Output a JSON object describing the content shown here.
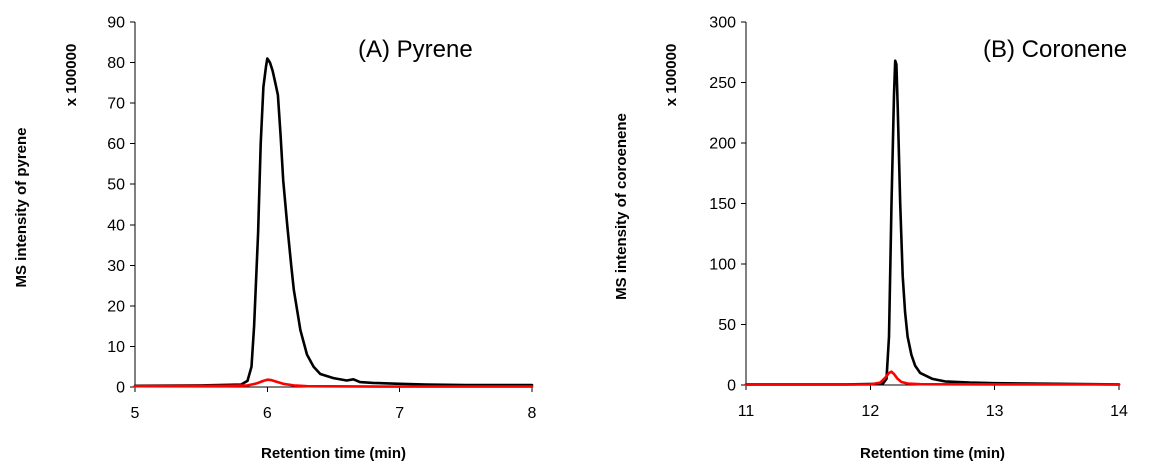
{
  "chart_data": [
    {
      "type": "line",
      "title": "(A) Pyrene",
      "xlabel": "Retention time (min)",
      "ylabel": "MS intensity of pyrene",
      "y_multiplier_label": "x 100000",
      "xlim": [
        5,
        8
      ],
      "ylim": [
        0,
        90
      ],
      "xticks": [
        "5",
        "6",
        "7",
        "8"
      ],
      "yticks": [
        "0",
        "10",
        "20",
        "30",
        "40",
        "50",
        "60",
        "70",
        "80",
        "90"
      ],
      "colors": {
        "black": "#000000",
        "red": "#ff0000"
      },
      "series": [
        {
          "color": "#000000",
          "x": [
            5.0,
            5.5,
            5.8,
            5.85,
            5.88,
            5.9,
            5.93,
            5.95,
            5.97,
            5.99,
            6.0,
            6.02,
            6.04,
            6.06,
            6.08,
            6.1,
            6.12,
            6.15,
            6.18,
            6.2,
            6.25,
            6.3,
            6.35,
            6.4,
            6.5,
            6.6,
            6.65,
            6.7,
            6.8,
            7.0,
            7.2,
            7.5,
            8.0
          ],
          "y": [
            0.3,
            0.4,
            0.6,
            1.5,
            5,
            15,
            38,
            60,
            74,
            79,
            81,
            80,
            78,
            75,
            72,
            62,
            51,
            40,
            30,
            24,
            14,
            8,
            5,
            3.2,
            2.2,
            1.6,
            1.9,
            1.2,
            1.0,
            0.8,
            0.6,
            0.5,
            0.5
          ]
        },
        {
          "color": "#ff0000",
          "x": [
            5.0,
            5.7,
            5.85,
            5.92,
            5.97,
            6.0,
            6.03,
            6.07,
            6.12,
            6.2,
            6.3,
            7.0,
            8.0
          ],
          "y": [
            0.2,
            0.3,
            0.4,
            0.9,
            1.5,
            1.8,
            1.7,
            1.3,
            0.8,
            0.4,
            0.2,
            0.1,
            0.1
          ]
        }
      ]
    },
    {
      "type": "line",
      "title": "(B) Coronene",
      "xlabel": "Retention time (min)",
      "ylabel": "MS intensity of coroenene",
      "y_multiplier_label": "x 100000",
      "xlim": [
        11,
        14
      ],
      "ylim": [
        0,
        300
      ],
      "xticks": [
        "11",
        "12",
        "13",
        "14"
      ],
      "yticks": [
        "0",
        "50",
        "100",
        "150",
        "200",
        "250",
        "300"
      ],
      "colors": {
        "black": "#000000",
        "red": "#ff0000"
      },
      "series": [
        {
          "color": "#000000",
          "x": [
            11.0,
            11.8,
            12.1,
            12.13,
            12.15,
            12.17,
            12.19,
            12.2,
            12.21,
            12.22,
            12.24,
            12.26,
            12.28,
            12.3,
            12.33,
            12.36,
            12.4,
            12.5,
            12.6,
            12.8,
            13.0,
            13.5,
            14.0
          ],
          "y": [
            0.5,
            0.5,
            1,
            5,
            40,
            150,
            240,
            268,
            265,
            230,
            150,
            90,
            60,
            40,
            25,
            16,
            10,
            5,
            3,
            2,
            1.5,
            1,
            0.5
          ]
        },
        {
          "color": "#ff0000",
          "x": [
            11.0,
            12.0,
            12.08,
            12.12,
            12.15,
            12.17,
            12.19,
            12.22,
            12.25,
            12.3,
            12.4,
            13.0,
            14.0
          ],
          "y": [
            0.3,
            0.5,
            2,
            6,
            10,
            11,
            9,
            5,
            2.5,
            1.2,
            0.7,
            0.5,
            0.4
          ]
        }
      ]
    }
  ]
}
